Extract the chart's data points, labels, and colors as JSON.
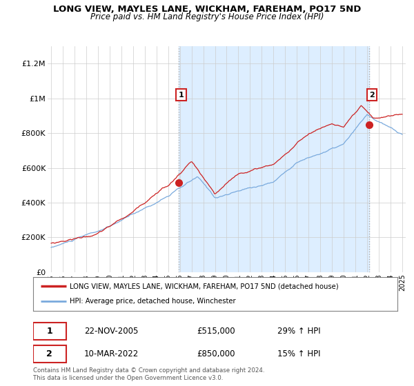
{
  "title": "LONG VIEW, MAYLES LANE, WICKHAM, FAREHAM, PO17 5ND",
  "subtitle": "Price paid vs. HM Land Registry's House Price Index (HPI)",
  "legend_line1": "LONG VIEW, MAYLES LANE, WICKHAM, FAREHAM, PO17 5ND (detached house)",
  "legend_line2": "HPI: Average price, detached house, Winchester",
  "annotation1": {
    "num": "1",
    "date": "22-NOV-2005",
    "price": "£515,000",
    "hpi": "29% ↑ HPI"
  },
  "annotation2": {
    "num": "2",
    "date": "10-MAR-2022",
    "price": "£850,000",
    "hpi": "15% ↑ HPI"
  },
  "footnote": "Contains HM Land Registry data © Crown copyright and database right 2024.\nThis data is licensed under the Open Government Licence v3.0.",
  "red_color": "#cc2222",
  "blue_color": "#7aaadd",
  "shade_color": "#ddeeff",
  "vline_color": "#aaaaaa",
  "sale1_x": 2005.9,
  "sale1_y": 515000,
  "sale2_x": 2022.2,
  "sale2_y": 850000,
  "ylim": [
    0,
    1300000
  ],
  "yticks": [
    0,
    200000,
    400000,
    600000,
    800000,
    1000000,
    1200000
  ],
  "ytick_labels": [
    "£0",
    "£200K",
    "£400K",
    "£600K",
    "£800K",
    "£1M",
    "£1.2M"
  ],
  "xlim_min": 1994.7,
  "xlim_max": 2025.3,
  "background_color": "#ffffff",
  "grid_color": "#cccccc",
  "chart_bg": "#f0f4f8"
}
